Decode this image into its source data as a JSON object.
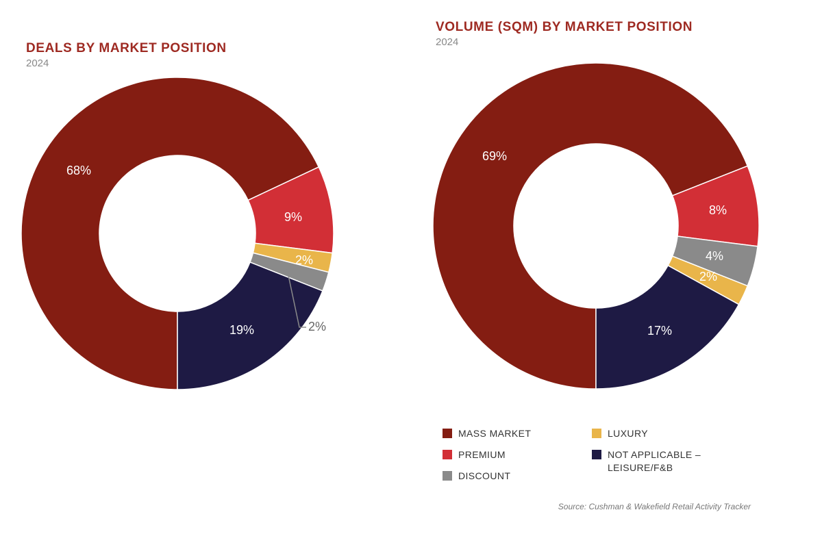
{
  "chart_data": [
    {
      "type": "pie",
      "title": "DEALS BY MARKET POSITION",
      "subtitle": "2024",
      "categories": [
        "Mass Market",
        "Premium",
        "Luxury",
        "Discount",
        "Not Applicable – Leisure/F&B"
      ],
      "values": [
        68,
        9,
        2,
        2,
        19
      ],
      "labels": [
        "68%",
        "9%",
        "2%",
        "2%",
        "19%"
      ],
      "colors": [
        "#841d12",
        "#d22f36",
        "#e9b54a",
        "#8a8a8a",
        "#1e1a44"
      ],
      "donut": true
    },
    {
      "type": "pie",
      "title": "VOLUME (SQM) BY MARKET POSITION",
      "subtitle": "2024",
      "categories": [
        "Mass Market",
        "Premium",
        "Discount",
        "Luxury",
        "Not Applicable – Leisure/F&B"
      ],
      "values": [
        69,
        8,
        4,
        2,
        17
      ],
      "labels": [
        "69%",
        "8%",
        "4%",
        "2%",
        "17%"
      ],
      "colors": [
        "#841d12",
        "#d22f36",
        "#8a8a8a",
        "#e9b54a",
        "#1e1a44"
      ],
      "donut": true
    }
  ],
  "legend": {
    "placement": "bottom-right",
    "items": [
      {
        "label": "MASS MARKET",
        "color": "#841d12"
      },
      {
        "label": "PREMIUM",
        "color": "#d22f36"
      },
      {
        "label": "DISCOUNT",
        "color": "#8a8a8a"
      },
      {
        "label": "LUXURY",
        "color": "#e9b54a"
      },
      {
        "label": "NOT APPLICABLE –\nLEISURE/F&B",
        "color": "#1e1a44"
      }
    ]
  },
  "source": "Source: Cushman & Wakefield Retail Activity Tracker"
}
